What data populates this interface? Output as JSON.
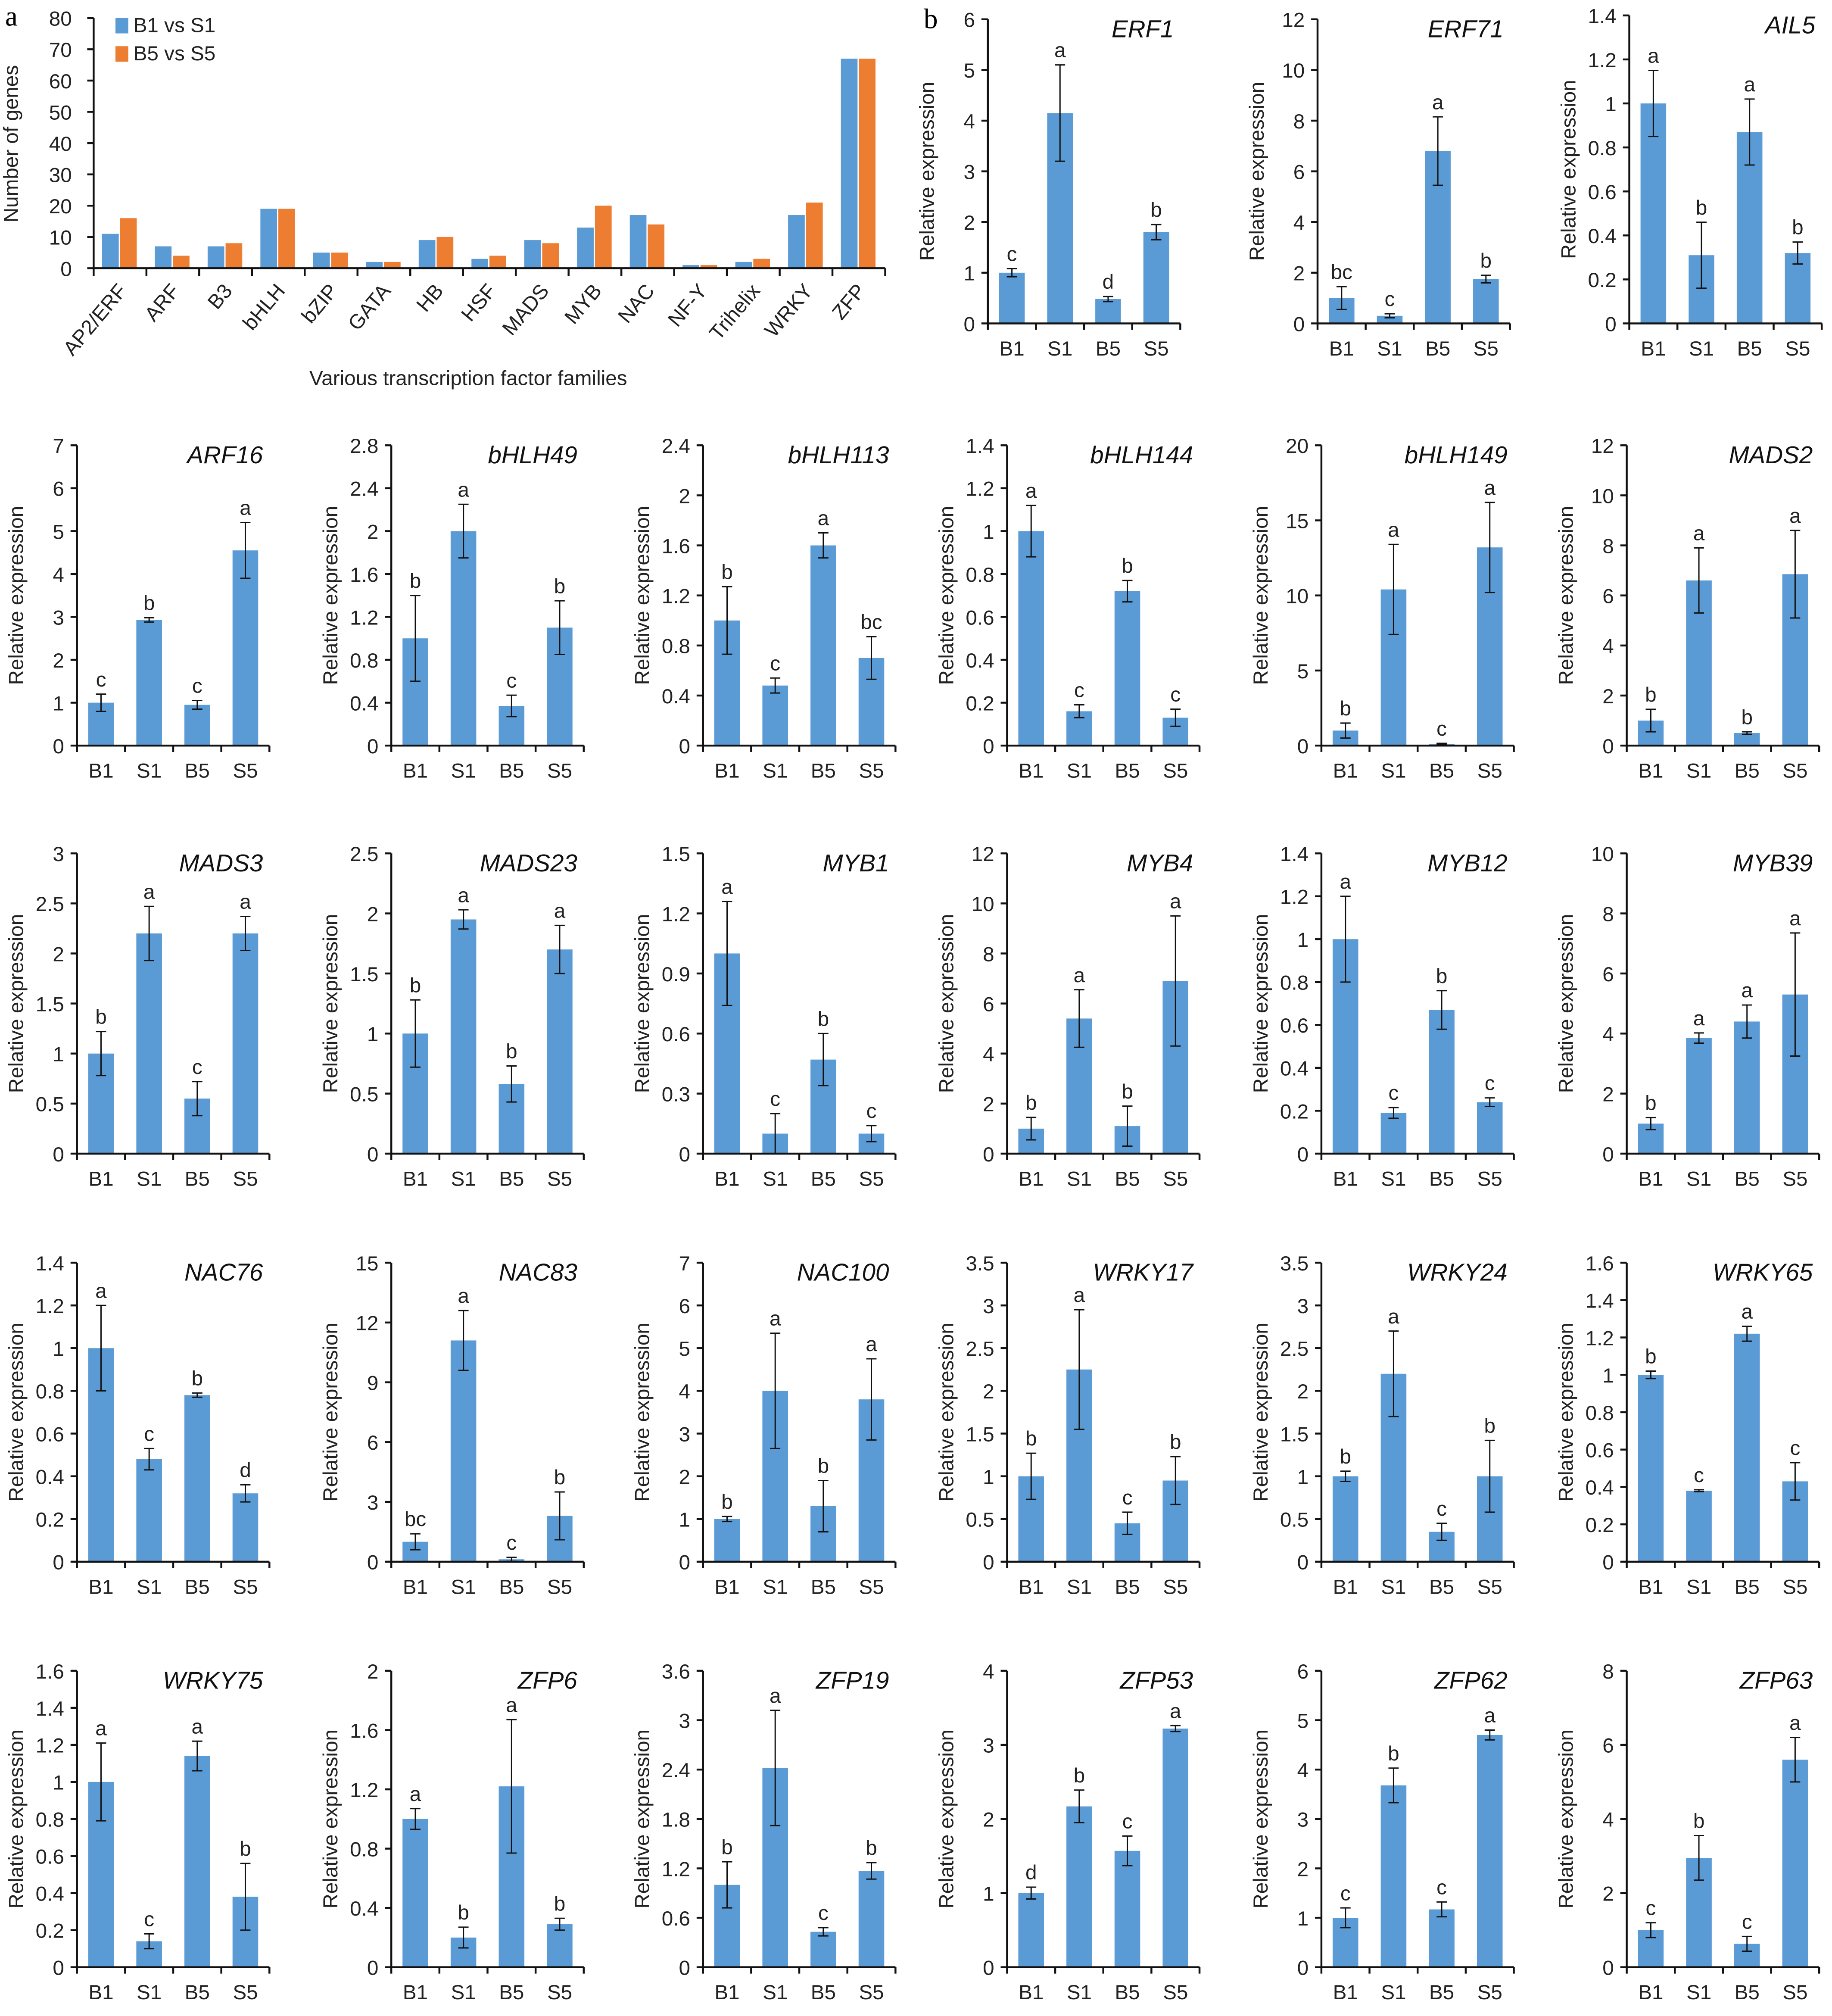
{
  "colors": {
    "blue": "#5b9bd5",
    "orange": "#ed7d31",
    "axis": "#111111"
  },
  "chart_data": [
    {
      "type": "bar",
      "panel_label": "a",
      "title": "",
      "xlabel": "Various transcription factor families",
      "ylabel": "Number of genes",
      "ylim": [
        0,
        80
      ],
      "yticks": [
        0,
        10,
        20,
        30,
        40,
        50,
        60,
        70,
        80
      ],
      "legend_placement": "top-left",
      "categories": [
        "AP2/ERF",
        "ARF",
        "B3",
        "bHLH",
        "bZIP",
        "GATA",
        "HB",
        "HSF",
        "MADS",
        "MYB",
        "NAC",
        "NF-Y",
        "Trihelix",
        "WRKY",
        "ZFP"
      ],
      "series": [
        {
          "name": "B1 vs S1",
          "values": [
            11,
            7,
            7,
            19,
            5,
            2,
            9,
            3,
            9,
            13,
            17,
            1,
            2,
            17,
            67
          ]
        },
        {
          "name": "B5 vs S5",
          "values": [
            16,
            4,
            8,
            19,
            5,
            2,
            10,
            4,
            8,
            20,
            14,
            1,
            3,
            21,
            67
          ]
        }
      ]
    },
    {
      "type": "bar",
      "panel_label": "b",
      "ylabel": "Relative expression",
      "categories": [
        "B1",
        "S1",
        "B5",
        "S5"
      ],
      "panels": [
        {
          "title": "ERF1",
          "yticks": [
            "0",
            "1",
            "2",
            "3",
            "4",
            "5",
            "6"
          ],
          "ylim": [
            0,
            6
          ],
          "values": [
            1.0,
            4.15,
            0.48,
            1.8
          ],
          "errors": [
            0.08,
            0.95,
            0.05,
            0.15
          ],
          "letters": [
            "c",
            "a",
            "d",
            "b"
          ]
        },
        {
          "title": "ERF71",
          "yticks": [
            "0",
            "2",
            "4",
            "6",
            "8",
            "10",
            "12"
          ],
          "ylim": [
            0,
            12
          ],
          "values": [
            1.0,
            0.3,
            6.8,
            1.75
          ],
          "errors": [
            0.45,
            0.08,
            1.35,
            0.15
          ],
          "letters": [
            "bc",
            "c",
            "a",
            "b"
          ]
        },
        {
          "title": "AIL5",
          "yticks": [
            "0",
            "0.2",
            "0.4",
            "0.6",
            "0.8",
            "1",
            "1.2",
            "1.4"
          ],
          "ylim": [
            0,
            1.4
          ],
          "values": [
            1.0,
            0.31,
            0.87,
            0.32
          ],
          "errors": [
            0.15,
            0.15,
            0.15,
            0.05
          ],
          "letters": [
            "a",
            "b",
            "a",
            "b"
          ]
        },
        {
          "title": "ARF16",
          "yticks": [
            "0",
            "1",
            "2",
            "3",
            "4",
            "5",
            "6",
            "7"
          ],
          "ylim": [
            0,
            7
          ],
          "values": [
            1.0,
            2.93,
            0.95,
            4.55
          ],
          "errors": [
            0.2,
            0.05,
            0.1,
            0.65
          ],
          "letters": [
            "c",
            "b",
            "c",
            "a"
          ]
        },
        {
          "title": "bHLH49",
          "yticks": [
            "0",
            "0.4",
            "0.8",
            "1.2",
            "1.6",
            "2",
            "2.4",
            "2.8"
          ],
          "ylim": [
            0,
            2.8
          ],
          "values": [
            1.0,
            2.0,
            0.37,
            1.1
          ],
          "errors": [
            0.4,
            0.25,
            0.1,
            0.25
          ],
          "letters": [
            "b",
            "a",
            "c",
            "b"
          ]
        },
        {
          "title": "bHLH113",
          "yticks": [
            "0",
            "0.4",
            "0.8",
            "1.2",
            "1.6",
            "2",
            "2.4"
          ],
          "ylim": [
            0,
            2.4
          ],
          "values": [
            1.0,
            0.48,
            1.6,
            0.7
          ],
          "errors": [
            0.27,
            0.06,
            0.1,
            0.17
          ],
          "letters": [
            "b",
            "c",
            "a",
            "bc"
          ]
        },
        {
          "title": "bHLH144",
          "yticks": [
            "0",
            "0.2",
            "0.4",
            "0.6",
            "0.8",
            "1",
            "1.2",
            "1.4"
          ],
          "ylim": [
            0,
            1.4
          ],
          "values": [
            1.0,
            0.16,
            0.72,
            0.13
          ],
          "errors": [
            0.12,
            0.03,
            0.05,
            0.04
          ],
          "letters": [
            "a",
            "c",
            "b",
            "c"
          ]
        },
        {
          "title": "bHLH149",
          "yticks": [
            "0",
            "5",
            "10",
            "15",
            "20"
          ],
          "ylim": [
            0,
            20
          ],
          "values": [
            1.0,
            10.4,
            0.1,
            13.2
          ],
          "errors": [
            0.5,
            3.0,
            0.05,
            3.0
          ],
          "letters": [
            "b",
            "a",
            "c",
            "a"
          ]
        },
        {
          "title": "MADS2",
          "yticks": [
            "0",
            "2",
            "4",
            "6",
            "8",
            "10",
            "12"
          ],
          "ylim": [
            0,
            12
          ],
          "values": [
            1.0,
            6.6,
            0.5,
            6.85
          ],
          "errors": [
            0.45,
            1.3,
            0.05,
            1.75
          ],
          "letters": [
            "b",
            "a",
            "b",
            "a"
          ]
        },
        {
          "title": "MADS3",
          "yticks": [
            "0",
            "0.5",
            "1",
            "1.5",
            "2",
            "2.5",
            "3"
          ],
          "ylim": [
            0,
            3
          ],
          "values": [
            1.0,
            2.2,
            0.55,
            2.2
          ],
          "errors": [
            0.22,
            0.27,
            0.17,
            0.17
          ],
          "letters": [
            "b",
            "a",
            "c",
            "a"
          ]
        },
        {
          "title": "MADS23",
          "yticks": [
            "0",
            "0.5",
            "1",
            "1.5",
            "2",
            "2.5"
          ],
          "ylim": [
            0,
            2.5
          ],
          "values": [
            1.0,
            1.95,
            0.58,
            1.7
          ],
          "errors": [
            0.28,
            0.08,
            0.15,
            0.2
          ],
          "letters": [
            "b",
            "a",
            "b",
            "a"
          ]
        },
        {
          "title": "MYB1",
          "yticks": [
            "0",
            "0.3",
            "0.6",
            "0.9",
            "1.2",
            "1.5"
          ],
          "ylim": [
            0,
            1.5
          ],
          "values": [
            1.0,
            0.1,
            0.47,
            0.1
          ],
          "errors": [
            0.26,
            0.1,
            0.13,
            0.04
          ],
          "letters": [
            "a",
            "c",
            "b",
            "c"
          ]
        },
        {
          "title": "MYB4",
          "yticks": [
            "0",
            "2",
            "4",
            "6",
            "8",
            "10",
            "12"
          ],
          "ylim": [
            0,
            12
          ],
          "values": [
            1.0,
            5.4,
            1.1,
            6.9
          ],
          "errors": [
            0.45,
            1.15,
            0.8,
            2.6
          ],
          "letters": [
            "b",
            "a",
            "b",
            "a"
          ]
        },
        {
          "title": "MYB12",
          "yticks": [
            "0",
            "0.2",
            "0.4",
            "0.6",
            "0.8",
            "1",
            "1.2",
            "1.4"
          ],
          "ylim": [
            0,
            1.4
          ],
          "values": [
            1.0,
            0.19,
            0.67,
            0.24
          ],
          "errors": [
            0.2,
            0.025,
            0.09,
            0.02
          ],
          "letters": [
            "a",
            "c",
            "b",
            "c"
          ]
        },
        {
          "title": "MYB39",
          "yticks": [
            "0",
            "2",
            "4",
            "6",
            "8",
            "10"
          ],
          "ylim": [
            0,
            10
          ],
          "values": [
            1.0,
            3.85,
            4.4,
            5.3
          ],
          "errors": [
            0.2,
            0.17,
            0.55,
            2.05
          ],
          "letters": [
            "b",
            "a",
            "a",
            "a"
          ]
        },
        {
          "title": "NAC76",
          "yticks": [
            "0",
            "0.2",
            "0.4",
            "0.6",
            "0.8",
            "1",
            "1.2",
            "1.4"
          ],
          "ylim": [
            0,
            1.4
          ],
          "values": [
            1.0,
            0.48,
            0.78,
            0.32
          ],
          "errors": [
            0.2,
            0.05,
            0.01,
            0.04
          ],
          "letters": [
            "a",
            "c",
            "b",
            "d"
          ]
        },
        {
          "title": "NAC83",
          "yticks": [
            "0",
            "3",
            "6",
            "9",
            "12",
            "15"
          ],
          "ylim": [
            0,
            15
          ],
          "values": [
            1.0,
            11.1,
            0.12,
            2.3
          ],
          "errors": [
            0.4,
            1.5,
            0.1,
            1.2
          ],
          "letters": [
            "bc",
            "a",
            "c",
            "b"
          ]
        },
        {
          "title": "NAC100",
          "yticks": [
            "0",
            "1",
            "2",
            "3",
            "4",
            "5",
            "6",
            "7"
          ],
          "ylim": [
            0,
            7
          ],
          "values": [
            1.0,
            4.0,
            1.3,
            3.8
          ],
          "errors": [
            0.06,
            1.35,
            0.6,
            0.95
          ],
          "letters": [
            "b",
            "a",
            "b",
            "a"
          ]
        },
        {
          "title": "WRKY17",
          "yticks": [
            "0",
            "0.5",
            "1",
            "1.5",
            "2",
            "2.5",
            "3",
            "3.5"
          ],
          "ylim": [
            0,
            3.5
          ],
          "values": [
            1.0,
            2.25,
            0.45,
            0.95
          ],
          "errors": [
            0.27,
            0.7,
            0.13,
            0.28
          ],
          "letters": [
            "b",
            "a",
            "c",
            "b"
          ]
        },
        {
          "title": "WRKY24",
          "yticks": [
            "0",
            "0.5",
            "1",
            "1.5",
            "2",
            "2.5",
            "3",
            "3.5"
          ],
          "ylim": [
            0,
            3.5
          ],
          "values": [
            1.0,
            2.2,
            0.35,
            1.0
          ],
          "errors": [
            0.06,
            0.5,
            0.1,
            0.42
          ],
          "letters": [
            "b",
            "a",
            "c",
            "b"
          ]
        },
        {
          "title": "WRKY65",
          "yticks": [
            "0",
            "0.2",
            "0.4",
            "0.6",
            "0.8",
            "1",
            "1.2",
            "1.4",
            "1.6"
          ],
          "ylim": [
            0,
            1.6
          ],
          "values": [
            1.0,
            0.38,
            1.22,
            0.43
          ],
          "errors": [
            0.02,
            0.005,
            0.04,
            0.1
          ],
          "letters": [
            "b",
            "c",
            "a",
            "c"
          ]
        },
        {
          "title": "WRKY75",
          "yticks": [
            "0",
            "0.2",
            "0.4",
            "0.6",
            "0.8",
            "1",
            "1.2",
            "1.4",
            "1.6"
          ],
          "ylim": [
            0,
            1.6
          ],
          "values": [
            1.0,
            0.14,
            1.14,
            0.38
          ],
          "errors": [
            0.21,
            0.04,
            0.08,
            0.18
          ],
          "letters": [
            "a",
            "c",
            "a",
            "b"
          ]
        },
        {
          "title": "ZFP6",
          "yticks": [
            "0",
            "0.4",
            "0.8",
            "1.2",
            "1.6",
            "2"
          ],
          "ylim": [
            0,
            2
          ],
          "values": [
            1.0,
            0.2,
            1.22,
            0.29
          ],
          "errors": [
            0.07,
            0.07,
            0.45,
            0.04
          ],
          "letters": [
            "a",
            "b",
            "a",
            "b"
          ]
        },
        {
          "title": "ZFP19",
          "yticks": [
            "0",
            "0.6",
            "1.2",
            "1.8",
            "2.4",
            "3",
            "3.6"
          ],
          "ylim": [
            0,
            3.6
          ],
          "values": [
            1.0,
            2.42,
            0.43,
            1.17
          ],
          "errors": [
            0.28,
            0.7,
            0.05,
            0.1
          ],
          "letters": [
            "b",
            "a",
            "c",
            "b"
          ]
        },
        {
          "title": "ZFP53",
          "yticks": [
            "0",
            "1",
            "2",
            "3",
            "4"
          ],
          "ylim": [
            0,
            4
          ],
          "values": [
            1.0,
            2.17,
            1.57,
            3.22
          ],
          "errors": [
            0.08,
            0.22,
            0.2,
            0.04
          ],
          "letters": [
            "d",
            "b",
            "c",
            "a"
          ]
        },
        {
          "title": "ZFP62",
          "yticks": [
            "0",
            "1",
            "2",
            "3",
            "4",
            "5",
            "6"
          ],
          "ylim": [
            0,
            6
          ],
          "values": [
            1.0,
            3.68,
            1.17,
            4.7
          ],
          "errors": [
            0.2,
            0.35,
            0.15,
            0.1
          ],
          "letters": [
            "c",
            "b",
            "c",
            "a"
          ]
        },
        {
          "title": "ZFP63",
          "yticks": [
            "0",
            "2",
            "4",
            "6",
            "8"
          ],
          "ylim": [
            0,
            8
          ],
          "values": [
            1.0,
            2.95,
            0.63,
            5.6
          ],
          "errors": [
            0.2,
            0.6,
            0.2,
            0.6
          ],
          "letters": [
            "c",
            "b",
            "c",
            "a"
          ]
        }
      ]
    }
  ]
}
